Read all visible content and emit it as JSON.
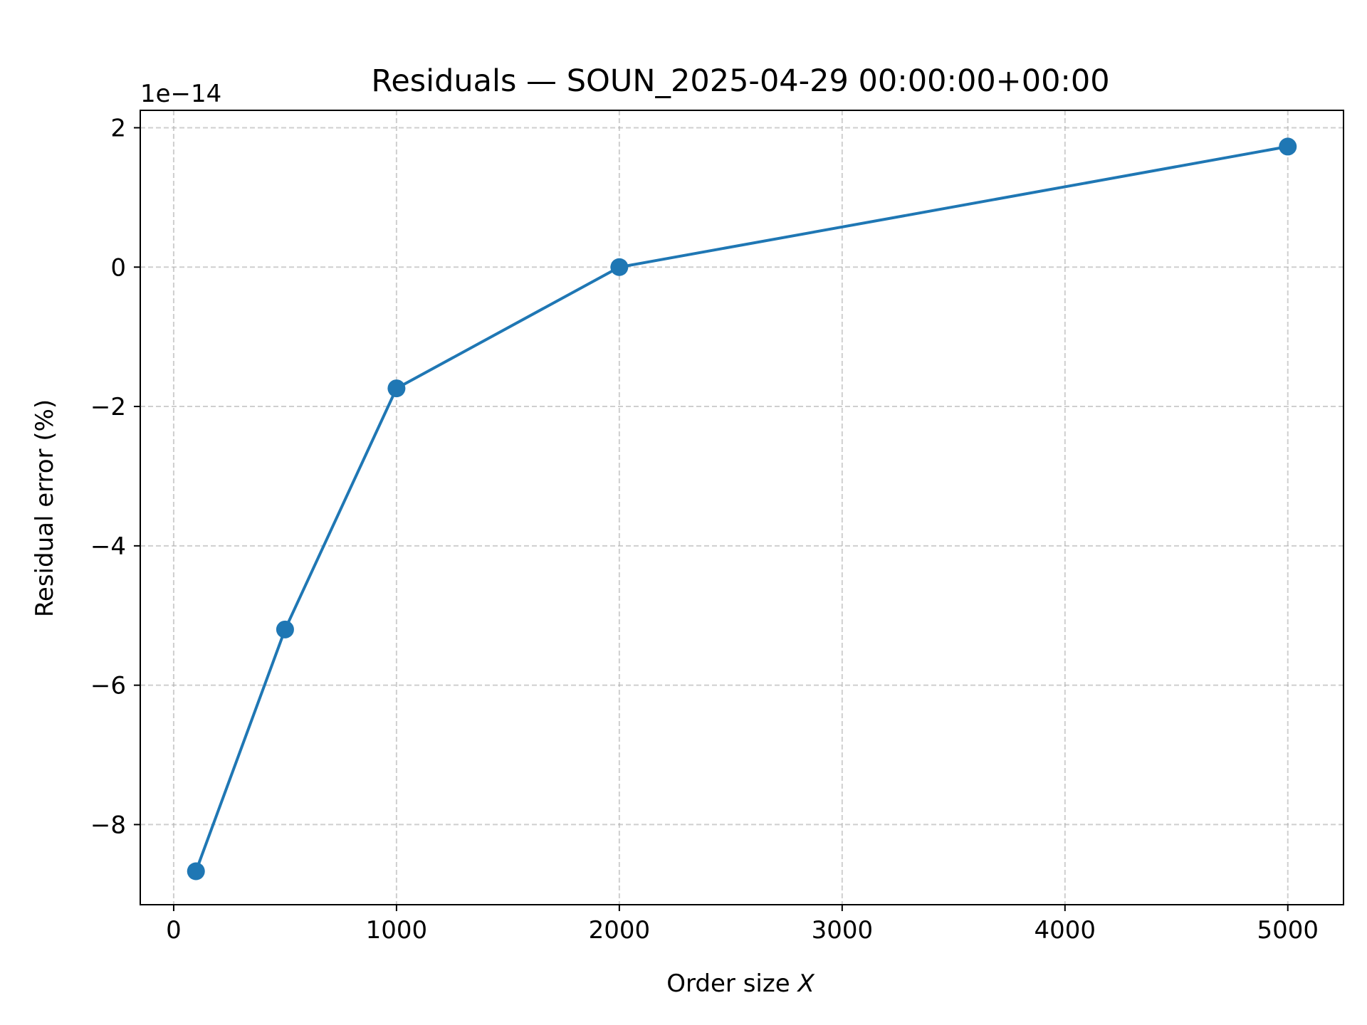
{
  "chart_data": {
    "type": "line",
    "title": "Residuals — SOUN_2025-04-29 00:00:00+00:00",
    "xlabel_prefix": "Order size ",
    "xlabel_var": "X",
    "ylabel": "Residual error (%)",
    "y_offset_label": "1e−14",
    "y_scale_exponent": -14,
    "xlim": [
      -150,
      5250
    ],
    "ylim": [
      -9.15,
      2.25
    ],
    "x_ticks": [
      0,
      1000,
      2000,
      3000,
      4000,
      5000
    ],
    "x_tick_labels": [
      "0",
      "1000",
      "2000",
      "3000",
      "4000",
      "5000"
    ],
    "y_ticks": [
      2,
      0,
      -2,
      -4,
      -6,
      -8
    ],
    "y_tick_labels": [
      "2",
      "0",
      "−2",
      "−4",
      "−6",
      "−8"
    ],
    "grid": true,
    "series": [
      {
        "color": "#1f77b4",
        "marker": "circle",
        "x": [
          100,
          500,
          1000,
          2000,
          5000
        ],
        "y": [
          -8.67,
          -5.2,
          -1.74,
          0.0,
          1.73
        ]
      }
    ]
  }
}
